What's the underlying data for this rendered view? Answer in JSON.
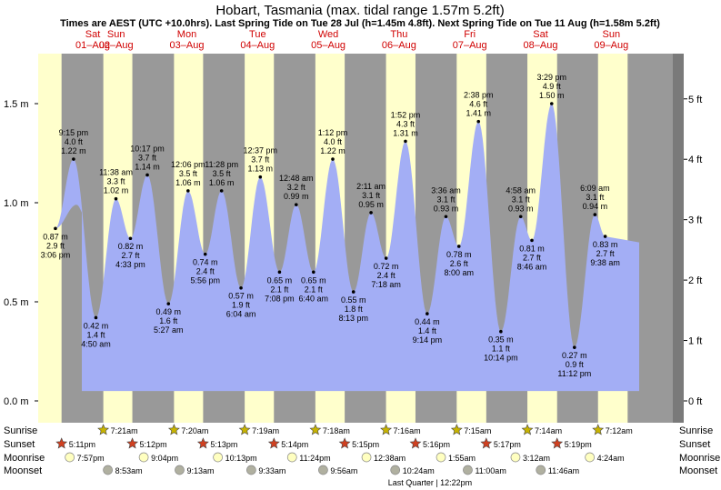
{
  "header": {
    "title": "Hobart, Tasmania (max. tidal range 1.57m 5.2ft)",
    "subtitle": "Times are AEST (UTC +10.0hrs). Last Spring Tide on Tue 28 Jul (h=1.45m 4.8ft). Next Spring Tide on Tue 11 Aug (h=1.58m 5.2ft)"
  },
  "days": [
    {
      "dow": "Sat",
      "date": "01–Aug"
    },
    {
      "dow": "Sun",
      "date": "02–Aug"
    },
    {
      "dow": "Mon",
      "date": "03–Aug"
    },
    {
      "dow": "Tue",
      "date": "04–Aug"
    },
    {
      "dow": "Wed",
      "date": "05–Aug"
    },
    {
      "dow": "Thu",
      "date": "06–Aug"
    },
    {
      "dow": "Fri",
      "date": "07–Aug"
    },
    {
      "dow": "Sat",
      "date": "08–Aug"
    },
    {
      "dow": "Sun",
      "date": "09–Aug"
    }
  ],
  "colors": {
    "day": "#ffffcc",
    "night": "#999999",
    "water": "#a3aef5",
    "tide_dot": "#000000",
    "day_label": "#d00000",
    "sunrise_star": "#c8b400",
    "sunset_star": "#d04020",
    "moonrise": "#ffffc0",
    "moonset": "#b0b0a0"
  },
  "chart_data": {
    "type": "area",
    "title": "Hobart, Tasmania (max. tidal range 1.57m 5.2ft)",
    "ylabel_left_unit": "m",
    "ylabel_right_unit": "ft",
    "ylim_m": [
      -0.05,
      1.75
    ],
    "yticks_left": [
      {
        "v": 0.0,
        "label": "0.0 m"
      },
      {
        "v": 0.5,
        "label": "0.5 m"
      },
      {
        "v": 1.0,
        "label": "1.0 m"
      },
      {
        "v": 1.5,
        "label": "1.5 m"
      }
    ],
    "yticks_right": [
      {
        "ft": 0,
        "label": "0 ft"
      },
      {
        "ft": 1,
        "label": "1 ft"
      },
      {
        "ft": 2,
        "label": "2 ft"
      },
      {
        "ft": 3,
        "label": "3 ft"
      },
      {
        "ft": 4,
        "label": "4 ft"
      },
      {
        "ft": 5,
        "label": "5 ft"
      }
    ],
    "extremes": [
      {
        "day": 0,
        "time": "3:06 pm",
        "m": 0.87,
        "ft": "2.9 ft",
        "m_label": "0.87 m",
        "type": "low"
      },
      {
        "day": 0,
        "time": "9:15 pm",
        "m": 1.22,
        "ft": "4.0 ft",
        "m_label": "1.22 m",
        "type": "high"
      },
      {
        "day": 1,
        "time": "4:50 am",
        "m": 0.42,
        "ft": "1.4 ft",
        "m_label": "0.42 m",
        "type": "low"
      },
      {
        "day": 1,
        "time": "11:38 am",
        "m": 1.02,
        "ft": "3.3 ft",
        "m_label": "1.02 m",
        "type": "high"
      },
      {
        "day": 1,
        "time": "4:33 pm",
        "m": 0.82,
        "ft": "2.7 ft",
        "m_label": "0.82 m",
        "type": "low"
      },
      {
        "day": 1,
        "time": "10:17 pm",
        "m": 1.14,
        "ft": "3.7 ft",
        "m_label": "1.14 m",
        "type": "high"
      },
      {
        "day": 2,
        "time": "5:27 am",
        "m": 0.49,
        "ft": "1.6 ft",
        "m_label": "0.49 m",
        "type": "low"
      },
      {
        "day": 2,
        "time": "12:06 pm",
        "m": 1.06,
        "ft": "3.5 ft",
        "m_label": "1.06 m",
        "type": "high"
      },
      {
        "day": 2,
        "time": "5:56 pm",
        "m": 0.74,
        "ft": "2.4 ft",
        "m_label": "0.74 m",
        "type": "low"
      },
      {
        "day": 2,
        "time": "11:28 pm",
        "m": 1.06,
        "ft": "3.5 ft",
        "m_label": "1.06 m",
        "type": "high"
      },
      {
        "day": 3,
        "time": "6:04 am",
        "m": 0.57,
        "ft": "1.9 ft",
        "m_label": "0.57 m",
        "type": "low"
      },
      {
        "day": 3,
        "time": "12:37 pm",
        "m": 1.13,
        "ft": "3.7 ft",
        "m_label": "1.13 m",
        "type": "high"
      },
      {
        "day": 3,
        "time": "7:08 pm",
        "m": 0.65,
        "ft": "2.1 ft",
        "m_label": "0.65 m",
        "type": "low"
      },
      {
        "day": 4,
        "time": "12:48 am",
        "m": 0.99,
        "ft": "3.2 ft",
        "m_label": "0.99 m",
        "type": "high"
      },
      {
        "day": 4,
        "time": "6:40 am",
        "m": 0.65,
        "ft": "2.1 ft",
        "m_label": "0.65 m",
        "type": "low"
      },
      {
        "day": 4,
        "time": "1:12 pm",
        "m": 1.22,
        "ft": "4.0 ft",
        "m_label": "1.22 m",
        "type": "high"
      },
      {
        "day": 4,
        "time": "8:13 pm",
        "m": 0.55,
        "ft": "1.8 ft",
        "m_label": "0.55 m",
        "type": "low"
      },
      {
        "day": 5,
        "time": "2:11 am",
        "m": 0.95,
        "ft": "3.1 ft",
        "m_label": "0.95 m",
        "type": "high"
      },
      {
        "day": 5,
        "time": "7:18 am",
        "m": 0.72,
        "ft": "2.4 ft",
        "m_label": "0.72 m",
        "type": "low"
      },
      {
        "day": 5,
        "time": "1:52 pm",
        "m": 1.31,
        "ft": "4.3 ft",
        "m_label": "1.31 m",
        "type": "high"
      },
      {
        "day": 5,
        "time": "9:14 pm",
        "m": 0.44,
        "ft": "1.4 ft",
        "m_label": "0.44 m",
        "type": "low"
      },
      {
        "day": 6,
        "time": "3:36 am",
        "m": 0.93,
        "ft": "3.1 ft",
        "m_label": "0.93 m",
        "type": "high"
      },
      {
        "day": 6,
        "time": "8:00 am",
        "m": 0.78,
        "ft": "2.6 ft",
        "m_label": "0.78 m",
        "type": "low"
      },
      {
        "day": 6,
        "time": "2:38 pm",
        "m": 1.41,
        "ft": "4.6 ft",
        "m_label": "1.41 m",
        "type": "high"
      },
      {
        "day": 6,
        "time": "10:14 pm",
        "m": 0.35,
        "ft": "1.1 ft",
        "m_label": "0.35 m",
        "type": "low"
      },
      {
        "day": 7,
        "time": "4:58 am",
        "m": 0.93,
        "ft": "3.1 ft",
        "m_label": "0.93 m",
        "type": "high"
      },
      {
        "day": 7,
        "time": "8:46 am",
        "m": 0.81,
        "ft": "2.7 ft",
        "m_label": "0.81 m",
        "type": "low"
      },
      {
        "day": 7,
        "time": "3:29 pm",
        "m": 1.5,
        "ft": "4.9 ft",
        "m_label": "1.50 m",
        "type": "high"
      },
      {
        "day": 7,
        "time": "11:12 pm",
        "m": 0.27,
        "ft": "0.9 ft",
        "m_label": "0.27 m",
        "type": "low"
      },
      {
        "day": 8,
        "time": "6:09 am",
        "m": 0.94,
        "ft": "3.1 ft",
        "m_label": "0.94 m",
        "type": "high"
      },
      {
        "day": 8,
        "time": "9:38 am",
        "m": 0.83,
        "ft": "2.7 ft",
        "m_label": "0.83 m",
        "type": "low"
      }
    ]
  },
  "astro": {
    "row_labels": [
      "Sunrise",
      "Sunset",
      "Moonrise",
      "Moonset"
    ],
    "sunrise": [
      {
        "day": 1,
        "time": "7:21am"
      },
      {
        "day": 2,
        "time": "7:20am"
      },
      {
        "day": 3,
        "time": "7:19am"
      },
      {
        "day": 4,
        "time": "7:18am"
      },
      {
        "day": 5,
        "time": "7:16am"
      },
      {
        "day": 6,
        "time": "7:15am"
      },
      {
        "day": 7,
        "time": "7:14am"
      },
      {
        "day": 8,
        "time": "7:12am"
      }
    ],
    "sunset": [
      {
        "day": 0,
        "time": "5:11pm"
      },
      {
        "day": 1,
        "time": "5:12pm"
      },
      {
        "day": 2,
        "time": "5:13pm"
      },
      {
        "day": 3,
        "time": "5:14pm"
      },
      {
        "day": 4,
        "time": "5:15pm"
      },
      {
        "day": 5,
        "time": "5:16pm"
      },
      {
        "day": 6,
        "time": "5:17pm"
      },
      {
        "day": 7,
        "time": "5:19pm"
      }
    ],
    "moonrise": [
      {
        "day": 0,
        "time": "7:57pm"
      },
      {
        "day": 1,
        "time": "9:04pm"
      },
      {
        "day": 2,
        "time": "10:13pm"
      },
      {
        "day": 3,
        "time": "11:24pm"
      },
      {
        "day": 5,
        "time": "12:38am"
      },
      {
        "day": 6,
        "time": "1:55am"
      },
      {
        "day": 7,
        "time": "3:12am"
      },
      {
        "day": 8,
        "time": "4:24am"
      }
    ],
    "moonset": [
      {
        "day": 1,
        "time": "8:53am"
      },
      {
        "day": 2,
        "time": "9:13am"
      },
      {
        "day": 3,
        "time": "9:33am"
      },
      {
        "day": 4,
        "time": "9:56am"
      },
      {
        "day": 5,
        "time": "10:24am"
      },
      {
        "day": 6,
        "time": "11:00am"
      },
      {
        "day": 7,
        "time": "11:46am"
      }
    ]
  },
  "footer": {
    "moon_phase": "Last Quarter | 12:22pm"
  }
}
